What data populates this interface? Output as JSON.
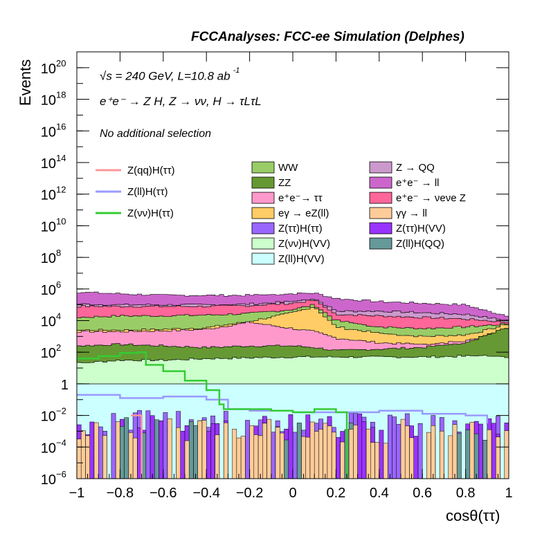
{
  "header": {
    "title": "FCCAnalyses: FCC-ee Simulation (Delphes)"
  },
  "annotations": {
    "energy_line": "√s = 240 GeV, L=10.8 ab",
    "energy_exp": "-1",
    "process_line": "e⁺e⁻ → Z H, Z → νν, H → τLτL",
    "selection": "No additional selection"
  },
  "chart_data": {
    "type": "area",
    "stacked": true,
    "xlabel": "cosθ(ττ)",
    "ylabel": "Events",
    "xlim": [
      -1,
      1
    ],
    "ylim": [
      1e-06,
      1e+21
    ],
    "yscale": "log",
    "xticks": [
      "−1",
      "−0.8",
      "−0.6",
      "−0.4",
      "−0.2",
      "0",
      "0.2",
      "0.4",
      "0.6",
      "0.8",
      "1"
    ],
    "yticks": [
      {
        "base": "10",
        "exp": "−6"
      },
      {
        "base": "10",
        "exp": "−4"
      },
      {
        "base": "10",
        "exp": "−2"
      },
      {
        "base": "1",
        "exp": ""
      },
      {
        "base": "10",
        "exp": "2"
      },
      {
        "base": "10",
        "exp": "4"
      },
      {
        "base": "10",
        "exp": "6"
      },
      {
        "base": "10",
        "exp": "8"
      },
      {
        "base": "10",
        "exp": "10"
      },
      {
        "base": "10",
        "exp": "12"
      },
      {
        "base": "10",
        "exp": "14"
      },
      {
        "base": "10",
        "exp": "16"
      },
      {
        "base": "10",
        "exp": "18"
      },
      {
        "base": "10",
        "exp": "20"
      }
    ],
    "x": [
      -1.0,
      -0.8,
      -0.6,
      -0.4,
      -0.2,
      0.0,
      0.1,
      0.2,
      0.4,
      0.6,
      0.8,
      0.9,
      1.0
    ],
    "stack_boundaries_log10": [
      {
        "name": "Z(ll)H(VV)",
        "color": "#ccffff",
        "values": [
          0.0,
          0.0,
          0.0,
          0.0,
          0.0,
          0.0,
          0.0,
          0.0,
          0.0,
          0.0,
          0.0,
          0.0,
          0.0
        ]
      },
      {
        "name": "Z(νν)H(VV)",
        "color": "#ccffcc",
        "values": [
          1.3,
          1.5,
          1.5,
          1.6,
          1.65,
          1.7,
          1.7,
          1.7,
          1.7,
          1.7,
          1.75,
          1.8,
          1.7
        ]
      },
      {
        "name": "ZZ",
        "color": "#669933",
        "values": [
          2.4,
          2.5,
          2.4,
          2.3,
          2.4,
          2.4,
          2.3,
          2.1,
          2.2,
          2.3,
          2.6,
          3.1,
          3.6
        ]
      },
      {
        "name": "e⁺e⁻→ ττ",
        "color": "#ff99cc",
        "values": [
          3.3,
          3.3,
          3.35,
          3.45,
          3.9,
          3.5,
          3.3,
          2.9,
          2.6,
          2.5,
          2.7,
          3.1,
          3.6
        ]
      },
      {
        "name": "eγ → eZ(ll)",
        "color": "#ffcc66",
        "values": [
          3.4,
          3.4,
          3.45,
          3.55,
          3.95,
          4.5,
          4.9,
          3.6,
          3.2,
          3.0,
          3.1,
          3.4,
          3.8
        ]
      },
      {
        "name": "WW",
        "color": "#99cc66",
        "values": [
          4.2,
          4.3,
          4.3,
          4.35,
          4.45,
          4.7,
          5.0,
          4.0,
          3.6,
          3.5,
          3.6,
          3.7,
          3.8
        ]
      },
      {
        "name": "e⁺e⁻ → νeνe Z",
        "color": "#ff6699",
        "values": [
          4.9,
          4.9,
          4.9,
          4.9,
          4.95,
          5.1,
          5.3,
          4.4,
          4.3,
          4.2,
          4.1,
          4.0,
          3.9
        ]
      },
      {
        "name": "Z → QQ",
        "color": "#cc99cc",
        "values": [
          5.05,
          5.0,
          5.0,
          5.0,
          5.05,
          5.2,
          5.4,
          4.6,
          4.6,
          4.5,
          4.4,
          4.2,
          4.0
        ]
      },
      {
        "name": "e⁺e⁻ → ll",
        "color": "#cc66cc",
        "values": [
          5.8,
          5.7,
          5.6,
          5.6,
          5.6,
          5.7,
          5.75,
          5.4,
          5.2,
          5.1,
          5.0,
          4.6,
          4.3
        ]
      }
    ],
    "minor_backgrounds": [
      {
        "name": "Z(ττ)H(ττ)",
        "color": "#9966ff"
      },
      {
        "name": "Z(ττ)H(VV)",
        "color": "#9933ff"
      },
      {
        "name": "Z(ll)H(QQ)",
        "color": "#669999"
      },
      {
        "name": "γγ → ll",
        "color": "#ffcc99"
      }
    ],
    "signals": [
      {
        "name": "Z(qq)H(ττ)",
        "color": "#ff9999"
      },
      {
        "name": "Z(ll)H(ττ)",
        "color": "#9999ff"
      },
      {
        "name": "Z(νν)H(ττ)",
        "color": "#33cc33"
      }
    ],
    "signal_znn_log10": {
      "x": [
        -1.0,
        -0.9,
        -0.8,
        -0.72,
        -0.68,
        -0.6,
        -0.5,
        -0.4,
        -0.34,
        -0.32,
        -0.2,
        -0.1,
        0.0,
        0.1,
        0.2,
        0.25
      ],
      "y": [
        1.6,
        1.75,
        1.95,
        2.0,
        1.2,
        0.8,
        0.2,
        -0.4,
        -1.3,
        -1.6,
        -1.6,
        -1.7,
        -1.8,
        -1.6,
        -1.8,
        -6.0
      ]
    },
    "signal_zll_log10": {
      "x": [
        -1.0,
        -0.8,
        -0.6,
        -0.4,
        -0.3,
        -0.2,
        0.0,
        0.2,
        0.4,
        0.6,
        0.8,
        0.9
      ],
      "y": [
        -0.7,
        -0.9,
        -0.8,
        -1.0,
        -1.6,
        -1.7,
        -1.8,
        -1.8,
        -1.7,
        -1.9,
        -2.0,
        -2.5
      ]
    },
    "signal_zqq_log10": {
      "x": [
        -0.75,
        -0.7,
        -0.7
      ],
      "y": [
        -2.0,
        -2.0,
        -6.0
      ]
    }
  }
}
